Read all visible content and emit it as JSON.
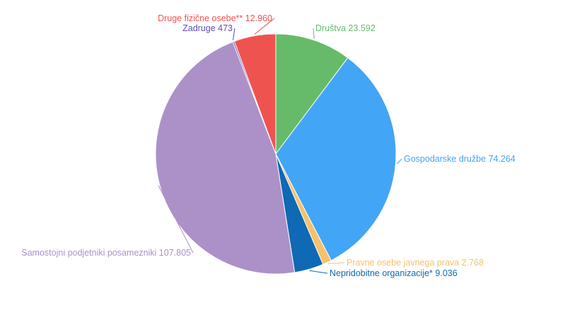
{
  "chart_data": {
    "type": "pie",
    "slices": [
      {
        "label": "Društva",
        "value": 23592,
        "value_text": "23.592",
        "color": "#66bb6a"
      },
      {
        "label": "Gospodarske družbe",
        "value": 74264,
        "value_text": "74.264",
        "color": "#42a5f5"
      },
      {
        "label": "Pravne osebe javnega prava",
        "value": 2768,
        "value_text": "2.768",
        "color": "#f5c26b"
      },
      {
        "label": "Nepridobitne organizacije*",
        "value": 9036,
        "value_text": "9.036",
        "color": "#0f69b4"
      },
      {
        "label": "Samostojni podjetniki posamezniki",
        "value": 107805,
        "value_text": "107.805",
        "color": "#ab91c8"
      },
      {
        "label": "Zadruge",
        "value": 473,
        "value_text": "473",
        "color": "#5c4bb8"
      },
      {
        "label": "Druge fizične osebe**",
        "value": 12960,
        "value_text": "12.960",
        "color": "#ef5350"
      }
    ]
  }
}
